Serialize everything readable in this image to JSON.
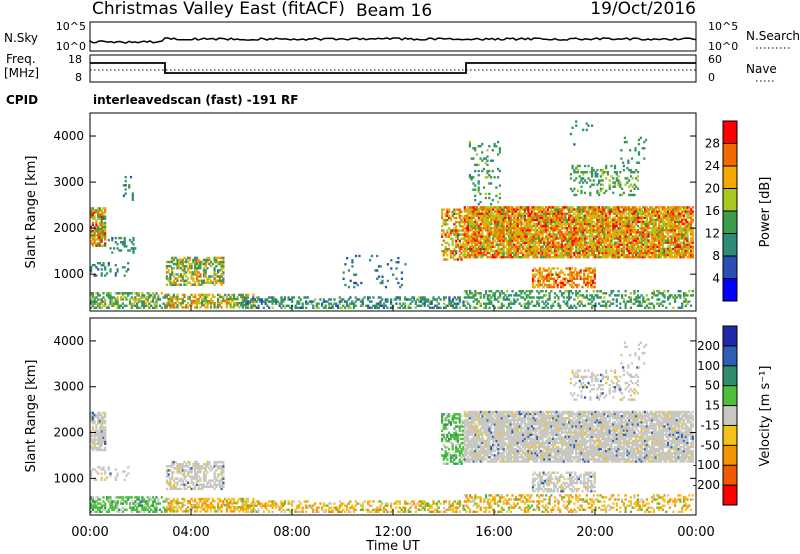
{
  "header": {
    "title": "Christmas Valley East (fitACF)",
    "beam": "Beam 16",
    "date": "19/Oct/2016"
  },
  "status_panels": {
    "nsky": {
      "label": "N.Sky",
      "ticks_left": [
        "10^5",
        "10^0"
      ],
      "ticks_right": [
        "10^5",
        "10^0"
      ],
      "right_label": "N.Search"
    },
    "freq": {
      "label_lines": [
        "Freq.",
        "[MHz]"
      ],
      "ticks_left": [
        "18",
        "8"
      ],
      "ticks_right": [
        "60",
        "0"
      ],
      "right_label": "Nave"
    },
    "cpid": {
      "label": "CPID",
      "text": "interleavedscan (fast) -191 RF"
    }
  },
  "chart_data": [
    {
      "type": "heatmap",
      "name": "power",
      "ylabel": "Slant Range [km]",
      "yticks": [
        "1000",
        "2000",
        "3000",
        "4000"
      ],
      "ylim": [
        200,
        4500
      ],
      "xlim": [
        0,
        24
      ],
      "colorbar": {
        "label": "Power [dB]",
        "ticks": [
          "4",
          "8",
          "12",
          "16",
          "20",
          "24",
          "28"
        ],
        "range": [
          0,
          30
        ],
        "colors": [
          "#0000ff",
          "#2a4fb0",
          "#2f8a78",
          "#3b9d4b",
          "#a8c81e",
          "#f2a800",
          "#f06a00",
          "#ff0000"
        ]
      }
    },
    {
      "type": "heatmap",
      "name": "velocity",
      "ylabel": "Slant Range [km]",
      "yticks": [
        "1000",
        "2000",
        "3000",
        "4000"
      ],
      "ylim": [
        200,
        4500
      ],
      "xlim": [
        0,
        24
      ],
      "xlabel": "Time UT",
      "xticks": [
        "00:00",
        "04:00",
        "08:00",
        "12:00",
        "16:00",
        "20:00",
        "00:00"
      ],
      "colorbar": {
        "label": "Velocity [m s⁻¹]",
        "ticks": [
          "200",
          "100",
          "50",
          "15",
          "-15",
          "-50",
          "-100",
          "-200"
        ],
        "colors": [
          "#1f2aa8",
          "#2e5fb5",
          "#2f8c6c",
          "#4dbf3a",
          "#c8c8c0",
          "#f2c21a",
          "#f39500",
          "#f05a00",
          "#ff0000"
        ]
      }
    }
  ]
}
